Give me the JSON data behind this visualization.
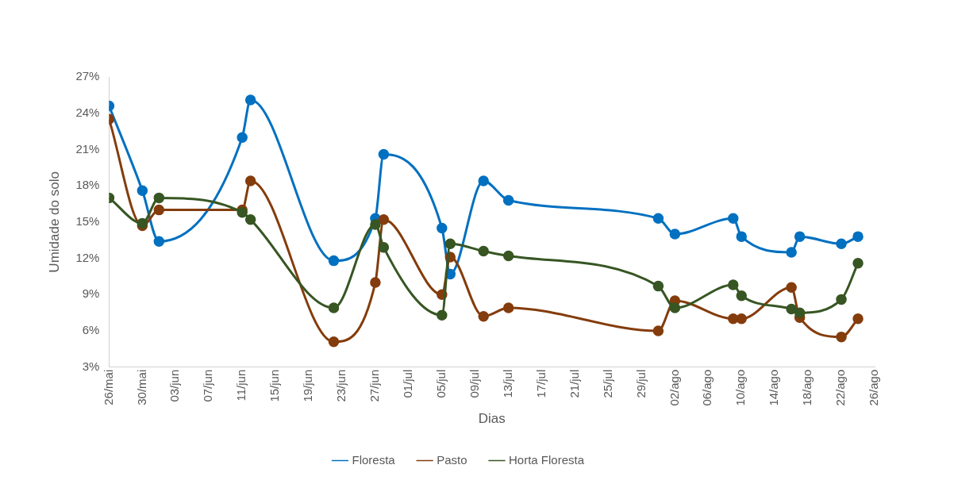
{
  "chart_data": {
    "type": "line",
    "xlabel": "Dias",
    "ylabel": "Umidade do solo",
    "x": [
      "--05-26",
      "--05-30",
      "--06-01",
      "--06-11",
      "--06-12",
      "--06-22",
      "--06-27",
      "--06-28",
      "--07-05",
      "--07-06",
      "--07-10",
      "--07-13",
      "--07-31",
      "--08-02",
      "--08-09",
      "--08-10",
      "--08-16",
      "--08-17",
      "--08-22",
      "--08-24"
    ],
    "series": [
      {
        "name": "Floresta",
        "color": "#0070c0",
        "values": [
          24.6,
          17.6,
          13.4,
          22.0,
          25.1,
          11.8,
          15.3,
          20.6,
          14.5,
          10.7,
          18.4,
          16.8,
          15.3,
          14.0,
          15.3,
          13.8,
          12.5,
          13.8,
          13.2,
          13.8
        ]
      },
      {
        "name": "Pasto",
        "color": "#843c0c",
        "values": [
          23.5,
          14.7,
          16.0,
          16.0,
          18.4,
          5.1,
          10.0,
          15.2,
          9.0,
          12.1,
          7.2,
          7.9,
          6.0,
          8.5,
          7.0,
          7.0,
          9.6,
          7.1,
          5.5,
          7.0
        ]
      },
      {
        "name": "Horta Floresta",
        "color": "#375623",
        "values": [
          17.0,
          14.9,
          17.0,
          15.8,
          15.2,
          7.9,
          14.8,
          12.9,
          7.3,
          13.2,
          12.6,
          12.2,
          9.7,
          7.9,
          9.8,
          8.9,
          7.8,
          7.5,
          8.6,
          11.6
        ]
      }
    ],
    "xlim": [
      "--05-26",
      "--08-26"
    ],
    "xticks": [
      {
        "value": "--05-26",
        "label": "26/mai"
      },
      {
        "value": "--05-30",
        "label": "30/mai"
      },
      {
        "value": "--06-03",
        "label": "03/jun"
      },
      {
        "value": "--06-07",
        "label": "07/jun"
      },
      {
        "value": "--06-11",
        "label": "11/jun"
      },
      {
        "value": "--06-15",
        "label": "15/jun"
      },
      {
        "value": "--06-19",
        "label": "19/jun"
      },
      {
        "value": "--06-23",
        "label": "23/jun"
      },
      {
        "value": "--06-27",
        "label": "27/jun"
      },
      {
        "value": "--07-01",
        "label": "01/jul"
      },
      {
        "value": "--07-05",
        "label": "05/jul"
      },
      {
        "value": "--07-09",
        "label": "09/jul"
      },
      {
        "value": "--07-13",
        "label": "13/jul"
      },
      {
        "value": "--07-17",
        "label": "17/jul"
      },
      {
        "value": "--07-21",
        "label": "21/jul"
      },
      {
        "value": "--07-25",
        "label": "25/jul"
      },
      {
        "value": "--07-29",
        "label": "29/jul"
      },
      {
        "value": "--08-02",
        "label": "02/ago"
      },
      {
        "value": "--08-06",
        "label": "06/ago"
      },
      {
        "value": "--08-10",
        "label": "10/ago"
      },
      {
        "value": "--08-14",
        "label": "14/ago"
      },
      {
        "value": "--08-18",
        "label": "18/ago"
      },
      {
        "value": "--08-22",
        "label": "22/ago"
      },
      {
        "value": "--08-26",
        "label": "26/ago"
      }
    ],
    "ylim": [
      3,
      27
    ],
    "yticks": [
      {
        "value": 3,
        "label": "3%"
      },
      {
        "value": 6,
        "label": "6%"
      },
      {
        "value": 9,
        "label": "9%"
      },
      {
        "value": 12,
        "label": "12%"
      },
      {
        "value": 15,
        "label": "15%"
      },
      {
        "value": 18,
        "label": "18%"
      },
      {
        "value": 21,
        "label": "21%"
      },
      {
        "value": 24,
        "label": "24%"
      },
      {
        "value": 27,
        "label": "27%"
      }
    ],
    "grid": false,
    "legend": "bottom",
    "marker": "circle",
    "line_style": "solid"
  }
}
